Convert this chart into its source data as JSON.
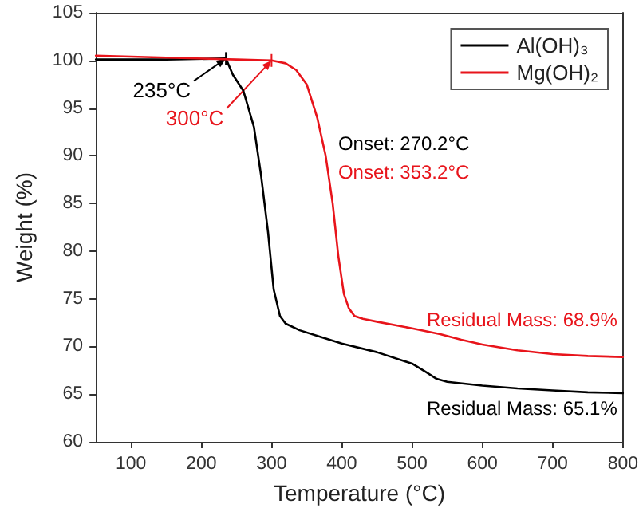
{
  "chart_data": {
    "type": "line",
    "xlabel": "Temperature (°C)",
    "ylabel": "Weight (%)",
    "xlim": [
      50,
      800
    ],
    "xticks": [
      100,
      200,
      300,
      400,
      500,
      600,
      700,
      800
    ],
    "ylim": [
      60,
      105
    ],
    "yticks": [
      60,
      65,
      70,
      75,
      80,
      85,
      90,
      95,
      100,
      105
    ],
    "grid": false,
    "legend": "top right",
    "marker": "none",
    "line_style": "solid",
    "series": [
      {
        "name": "Al(OH)₃",
        "color": "#000000",
        "x": [
          50,
          150,
          235,
          245,
          260,
          275,
          285,
          295,
          303,
          312,
          320,
          340,
          370,
          400,
          450,
          500,
          520,
          535,
          550,
          600,
          650,
          700,
          750,
          800
        ],
        "values": [
          100.1,
          100.1,
          100.2,
          98.5,
          96.8,
          93,
          88,
          82,
          76,
          73.2,
          72.4,
          71.7,
          71,
          70.3,
          69.4,
          68.2,
          67.3,
          66.6,
          66.3,
          65.9,
          65.6,
          65.4,
          65.2,
          65.1
        ]
      },
      {
        "name": "Mg(OH)₂",
        "color": "#e8141b",
        "x": [
          50,
          150,
          250,
          300,
          320,
          335,
          350,
          365,
          377,
          387,
          395,
          403,
          410,
          418,
          430,
          450,
          500,
          540,
          570,
          600,
          650,
          700,
          750,
          800
        ],
        "values": [
          100.5,
          100.3,
          100.1,
          100,
          99.7,
          99,
          97.5,
          94,
          90,
          85,
          79.5,
          75.5,
          74,
          73.2,
          72.9,
          72.6,
          71.9,
          71.3,
          70.7,
          70.2,
          69.6,
          69.2,
          69,
          68.9
        ]
      }
    ],
    "annotations": [
      {
        "text": "235°C",
        "x": 235,
        "y": 100.2
      },
      {
        "text": "300°C",
        "x": 300,
        "y": 100
      },
      "Onset: 270.2°C",
      "Onset: 353.2°C",
      "Residual Mass: 65.1%",
      "Residual Mass: 68.9%"
    ]
  }
}
